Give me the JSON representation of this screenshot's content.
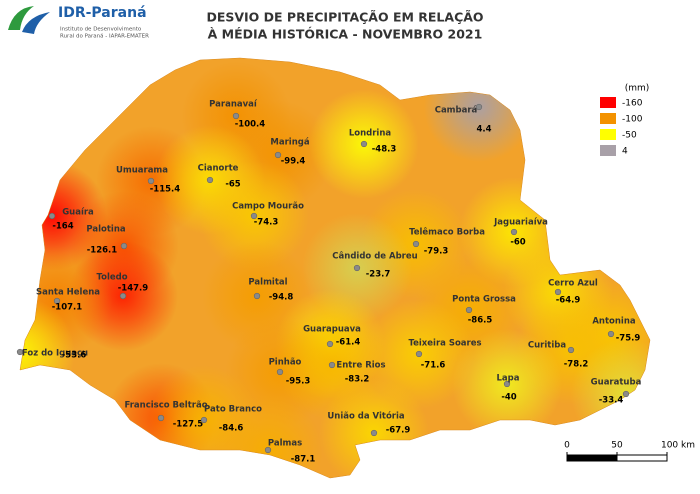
{
  "logo": {
    "name": "IDR-Paraná",
    "line1": "Instituto de Desenvolvimento",
    "line2": "Rural do Paraná - IAPAR-EMATER"
  },
  "title": [
    "DESVIO DE PRECIPITAÇÃO EM RELAÇÃO",
    "À MÉDIA HISTÓRICA - NOVEMBRO 2021"
  ],
  "legend": {
    "title": "(mm)",
    "items": [
      {
        "value": -160,
        "color": "#ff0000"
      },
      {
        "value": -100,
        "color": "#f39200"
      },
      {
        "value": -50,
        "color": "#ffff00"
      },
      {
        "value": 4,
        "color": "#a8a0a8"
      }
    ]
  },
  "stations": [
    {
      "name": "Paranavaí",
      "value": -100.4
    },
    {
      "name": "Maringá",
      "value": -99.4
    },
    {
      "name": "Londrina",
      "value": -48.3
    },
    {
      "name": "Cambará",
      "value": 4.4
    },
    {
      "name": "Umuarama",
      "value": -115.4
    },
    {
      "name": "Cianorte",
      "value": -65
    },
    {
      "name": "Campo Mourão",
      "value": -74.3
    },
    {
      "name": "Guaíra",
      "value": -164
    },
    {
      "name": "Palotina",
      "value": -126.1
    },
    {
      "name": "Telêmaco Borba",
      "value": -79.3
    },
    {
      "name": "Jaguariaíva",
      "value": -60
    },
    {
      "name": "Cândido de Abreu",
      "value": -23.7
    },
    {
      "name": "Toledo",
      "value": -147.9
    },
    {
      "name": "Santa Helena",
      "value": -107.1
    },
    {
      "name": "Palmital",
      "value": -94.8
    },
    {
      "name": "Cerro Azul",
      "value": -64.9
    },
    {
      "name": "Ponta Grossa",
      "value": -86.5
    },
    {
      "name": "Antonina",
      "value": -75.9
    },
    {
      "name": "Guarapuava",
      "value": -61.4
    },
    {
      "name": "Foz do Iguaçu",
      "value": -53.6
    },
    {
      "name": "Teixeira Soares",
      "value": -71.6
    },
    {
      "name": "Curitiba",
      "value": -78.2
    },
    {
      "name": "Pinhão",
      "value": -95.3
    },
    {
      "name": "Entre Rios",
      "value": -83.2
    },
    {
      "name": "Lapa",
      "value": -40
    },
    {
      "name": "Guaratuba",
      "value": -33.4
    },
    {
      "name": "Francisco Beltrão",
      "value": -127.5
    },
    {
      "name": "Pato Branco",
      "value": -84.6
    },
    {
      "name": "União da Vitória",
      "value": -67.9
    },
    {
      "name": "Palmas",
      "value": -87.1
    }
  ],
  "scale_bar": {
    "ticks": [
      0,
      50,
      {
        "value": 100,
        "label": "100 km"
      }
    ]
  }
}
